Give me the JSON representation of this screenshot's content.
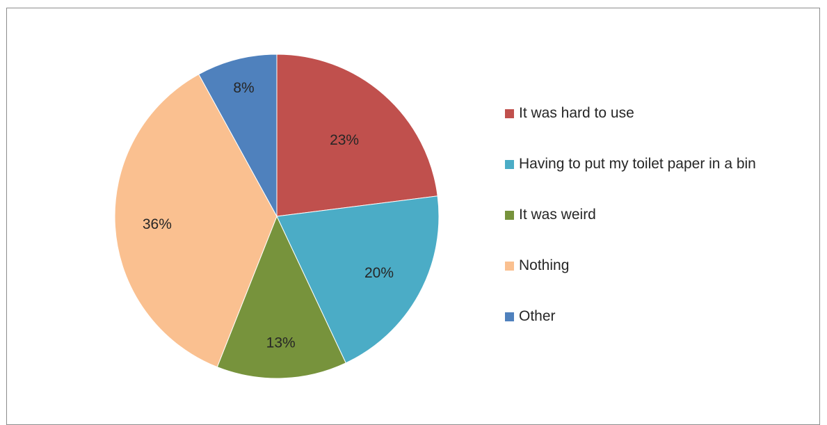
{
  "chart_data": {
    "type": "pie",
    "title": "",
    "categories": [
      "It was hard to use",
      "Having to put my toilet paper in a bin",
      "It was weird",
      "Nothing",
      "Other"
    ],
    "values": [
      23,
      20,
      13,
      36,
      8
    ],
    "value_labels": [
      "23%",
      "20%",
      "13%",
      "36%",
      "8%"
    ],
    "colors": [
      "#C0504D",
      "#4BACC6",
      "#77933C",
      "#FAC090",
      "#4F81BD"
    ],
    "legend": {
      "placement": "right",
      "entries": [
        "It was hard to use",
        "Having to put my toilet paper in a bin",
        "It was weird",
        "Nothing",
        "Other"
      ]
    }
  }
}
